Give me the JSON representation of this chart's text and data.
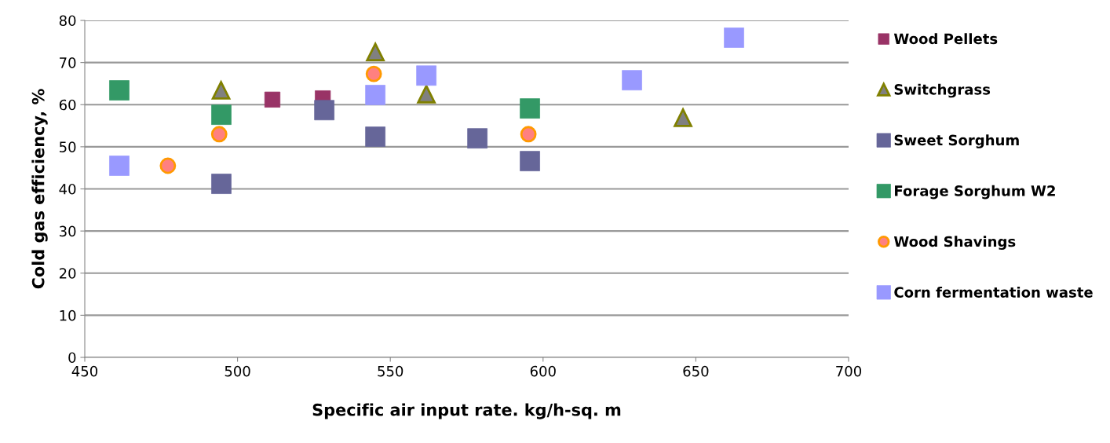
{
  "chart_data": {
    "type": "scatter",
    "xlabel": "Specific air input rate. kg/h-sq. m",
    "ylabel": "Cold gas efficiency, %",
    "xlim": [
      450,
      700
    ],
    "xticks": [
      450,
      500,
      550,
      600,
      650,
      700
    ],
    "ylim": [
      0,
      80
    ],
    "yticks": [
      0,
      10,
      20,
      30,
      40,
      50,
      60,
      70,
      80
    ],
    "grid": "y",
    "legend": "right",
    "series": [
      {
        "name": "Wood Pellets",
        "color": "#993366",
        "marker": "square",
        "x": [
          511.4,
          527.9
        ],
        "values": [
          61.2,
          61.5
        ]
      },
      {
        "name": "Switchgrass",
        "color": "#808080",
        "marker": "triangle",
        "x": [
          494.6,
          545.1,
          561.8,
          645.8
        ],
        "values": [
          63.4,
          72.5,
          62.5,
          56.9
        ]
      },
      {
        "name": "Sweet Sorghum",
        "color": "#666699",
        "marker": "square",
        "x": [
          494.7,
          528.4,
          545.1,
          578.5,
          595.7
        ],
        "values": [
          41.2,
          58.7,
          52.4,
          52.0,
          46.6
        ]
      },
      {
        "name": "Forage Sorghum W2",
        "color": "#339966",
        "marker": "square",
        "x": [
          461.3,
          494.7,
          595.7
        ],
        "values": [
          63.4,
          57.6,
          59.1
        ]
      },
      {
        "name": "Wood Shavings",
        "color": "#ff8080",
        "marker": "circle",
        "x": [
          477.2,
          494.0,
          544.6,
          595.2
        ],
        "values": [
          45.5,
          53.0,
          67.3,
          53.0
        ]
      },
      {
        "name": "Corn fermentation waste",
        "color": "#9999ff",
        "marker": "square",
        "x": [
          461.3,
          545.1,
          561.8,
          629.1,
          662.5
        ],
        "values": [
          45.5,
          62.3,
          66.9,
          65.8,
          75.9
        ]
      }
    ]
  }
}
